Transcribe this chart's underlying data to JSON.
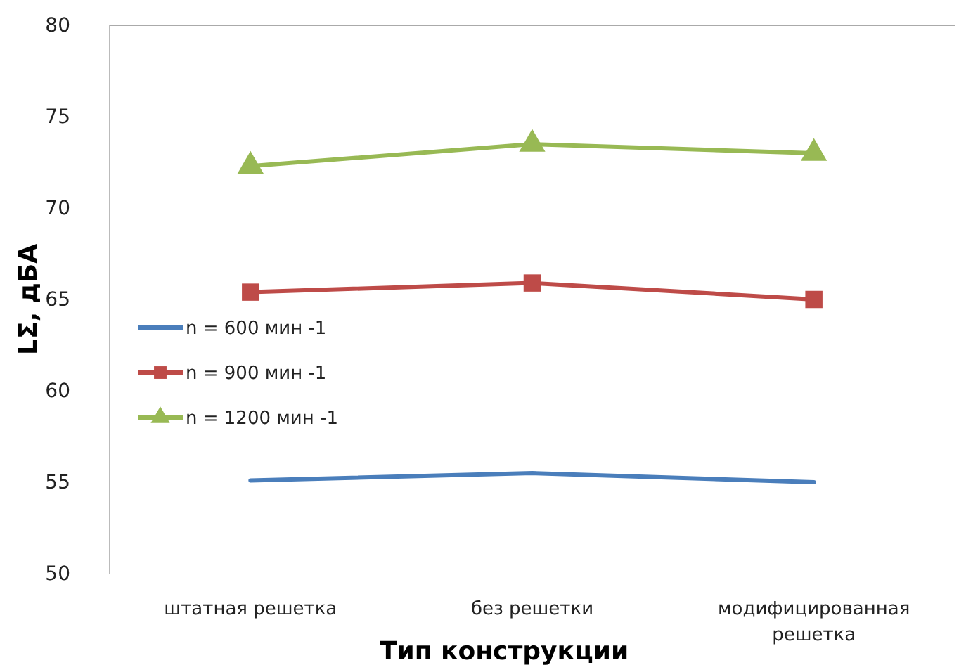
{
  "chart_data": {
    "type": "line",
    "xlabel": "Тип конструкции",
    "ylabel": "LΣ, дБА",
    "categories": [
      "штатная решетка",
      "без решетки",
      "модифицированная решетка"
    ],
    "series": [
      {
        "name": "n = 600 мин -1",
        "color": "#4a7ebb",
        "marker": "none",
        "values": [
          55.1,
          55.5,
          55.0
        ]
      },
      {
        "name": "n = 900 мин -1",
        "color": "#be4b48",
        "marker": "square",
        "values": [
          65.4,
          65.9,
          65.0
        ]
      },
      {
        "name": "n = 1200 мин -1",
        "color": "#98b954",
        "marker": "triangle",
        "values": [
          72.3,
          73.5,
          73.0
        ]
      }
    ],
    "ylim": [
      50,
      80
    ],
    "yticks": [
      50,
      55,
      60,
      65,
      70,
      75,
      80
    ],
    "grid": false,
    "legend": "left"
  }
}
